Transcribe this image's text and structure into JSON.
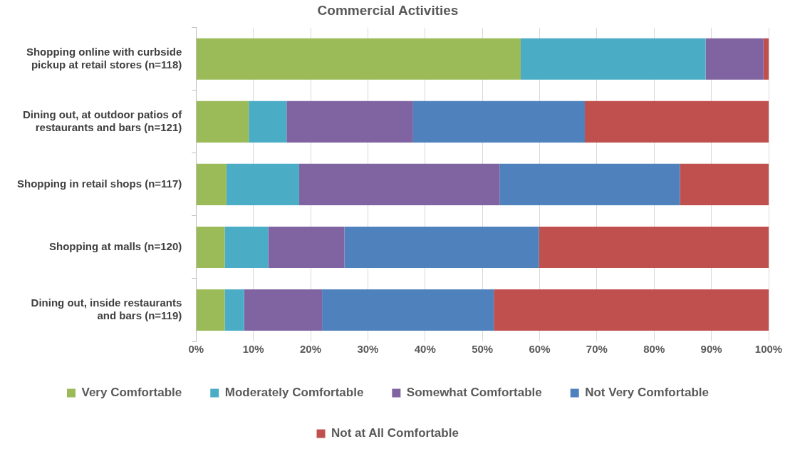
{
  "chart_data": {
    "type": "bar",
    "orientation": "horizontal",
    "stacked": true,
    "title": "Commercial Activities",
    "categories": [
      "Shopping online with curbside pickup at retail stores (n=118)",
      "Dining out, at outdoor patios of restaurants and bars (n=121)",
      "Shopping in retail shops (n=117)",
      "Shopping at malls (n=120)",
      "Dining out, inside restaurants and bars (n=119)"
    ],
    "series": [
      {
        "name": "Very Comfortable",
        "color": "#9bbb59",
        "values": [
          56.7,
          9.2,
          5.3,
          5.0,
          5.0
        ]
      },
      {
        "name": "Moderately Comfortable",
        "color": "#4bacc6",
        "values": [
          32.3,
          6.6,
          12.7,
          7.6,
          3.4
        ]
      },
      {
        "name": "Somewhat Comfortable",
        "color": "#8064a2",
        "values": [
          10.1,
          22.1,
          35.0,
          13.3,
          13.6
        ]
      },
      {
        "name": "Not Very Comfortable",
        "color": "#4f81bd",
        "values": [
          0,
          30.0,
          31.5,
          34.0,
          30.0
        ]
      },
      {
        "name": "Not at All Comfortable",
        "color": "#c0504d",
        "values": [
          0.9,
          32.1,
          15.5,
          40.1,
          48.0
        ]
      }
    ],
    "xlim": [
      0,
      100
    ],
    "xticks": [
      {
        "value": 0,
        "label": "0%"
      },
      {
        "value": 10,
        "label": "10%"
      },
      {
        "value": 20,
        "label": "20%"
      },
      {
        "value": 30,
        "label": "30%"
      },
      {
        "value": 40,
        "label": "40%"
      },
      {
        "value": 50,
        "label": "50%"
      },
      {
        "value": 60,
        "label": "60%"
      },
      {
        "value": 70,
        "label": "70%"
      },
      {
        "value": 80,
        "label": "80%"
      },
      {
        "value": 90,
        "label": "90%"
      },
      {
        "value": 100,
        "label": "100%"
      }
    ],
    "grid": "x",
    "legend": "bottom"
  }
}
